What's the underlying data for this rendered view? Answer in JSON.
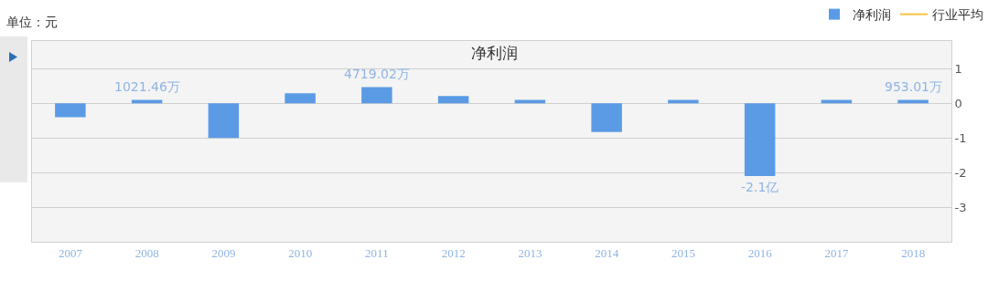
{
  "chart_data": {
    "type": "bar",
    "title": "净利润",
    "annotations": [
      "单位：元",
      {
        "text": "1021.46万",
        "x": "2008",
        "y": 0.1
      },
      {
        "text": "4719.02万",
        "x": "2011",
        "y": 0.47
      },
      {
        "text": "-2.1亿",
        "x": "2016",
        "y": -2.1
      },
      {
        "text": "953.01万",
        "x": "2018",
        "y": 0.1
      }
    ],
    "categories": [
      "2007",
      "2008",
      "2009",
      "2010",
      "2011",
      "2012",
      "2013",
      "2014",
      "2015",
      "2016",
      "2017",
      "2018"
    ],
    "series": [
      {
        "name": "净利润",
        "color": "#5b9be6",
        "values": [
          -0.4,
          0.1,
          -1.0,
          0.29,
          0.47,
          0.21,
          0.1,
          -0.83,
          0.1,
          -2.1,
          0.1,
          0.1
        ]
      },
      {
        "name": "行业平均",
        "type": "line",
        "color": "#f5c242",
        "values": [
          null,
          null,
          null,
          null,
          null,
          null,
          null,
          null,
          null,
          null,
          null,
          null
        ]
      }
    ],
    "ylim": [
      -4,
      1.8
    ],
    "yticks": [
      -3,
      -2,
      -1,
      0,
      1
    ],
    "grid": "y",
    "legend": "top right"
  }
}
